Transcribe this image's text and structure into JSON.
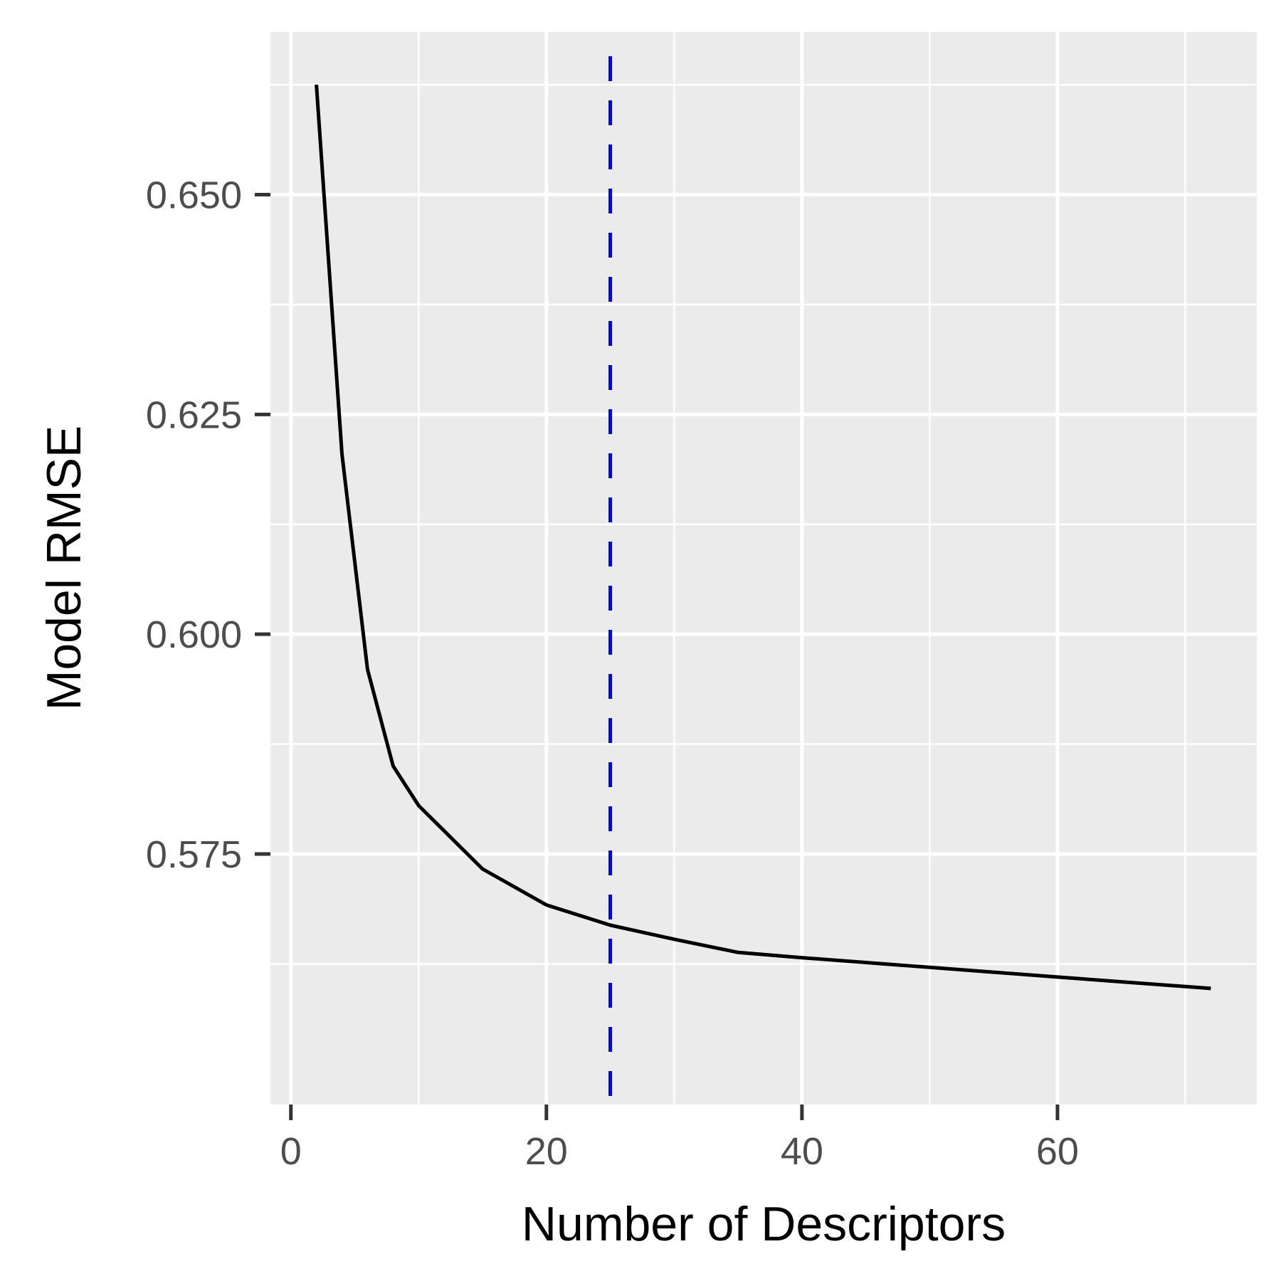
{
  "chart_data": {
    "type": "line",
    "title": "",
    "xlabel": "Number of Descriptors",
    "ylabel": "Model RMSE",
    "xlim": [
      -1.6,
      75.6
    ],
    "ylim": [
      0.5465,
      0.6685
    ],
    "x_ticks": [
      0,
      20,
      40,
      60
    ],
    "x_tick_labels": [
      "0",
      "20",
      "40",
      "60"
    ],
    "x_minor_ticks": [
      10,
      30,
      50,
      70
    ],
    "y_ticks": [
      0.575,
      0.6,
      0.625,
      0.65
    ],
    "y_tick_labels": [
      "0.575",
      "0.600",
      "0.625",
      "0.650"
    ],
    "y_minor_ticks": [
      0.5625,
      0.5875,
      0.6125,
      0.6375,
      0.6625
    ],
    "grid": true,
    "legend": "none",
    "series": [
      {
        "color": "#000000",
        "x": [
          2,
          4,
          6,
          8,
          10,
          15,
          20,
          25,
          30,
          35,
          40,
          50,
          60,
          72
        ],
        "y": [
          0.6625,
          0.6205,
          0.596,
          0.585,
          0.5805,
          0.5733,
          0.5692,
          0.5669,
          0.5653,
          0.5638,
          0.5632,
          0.5621,
          0.561,
          0.5597
        ]
      }
    ],
    "reference_lines": [
      {
        "orientation": "vertical",
        "x": 25,
        "color": "#0000FF",
        "style": "dashed"
      }
    ]
  }
}
